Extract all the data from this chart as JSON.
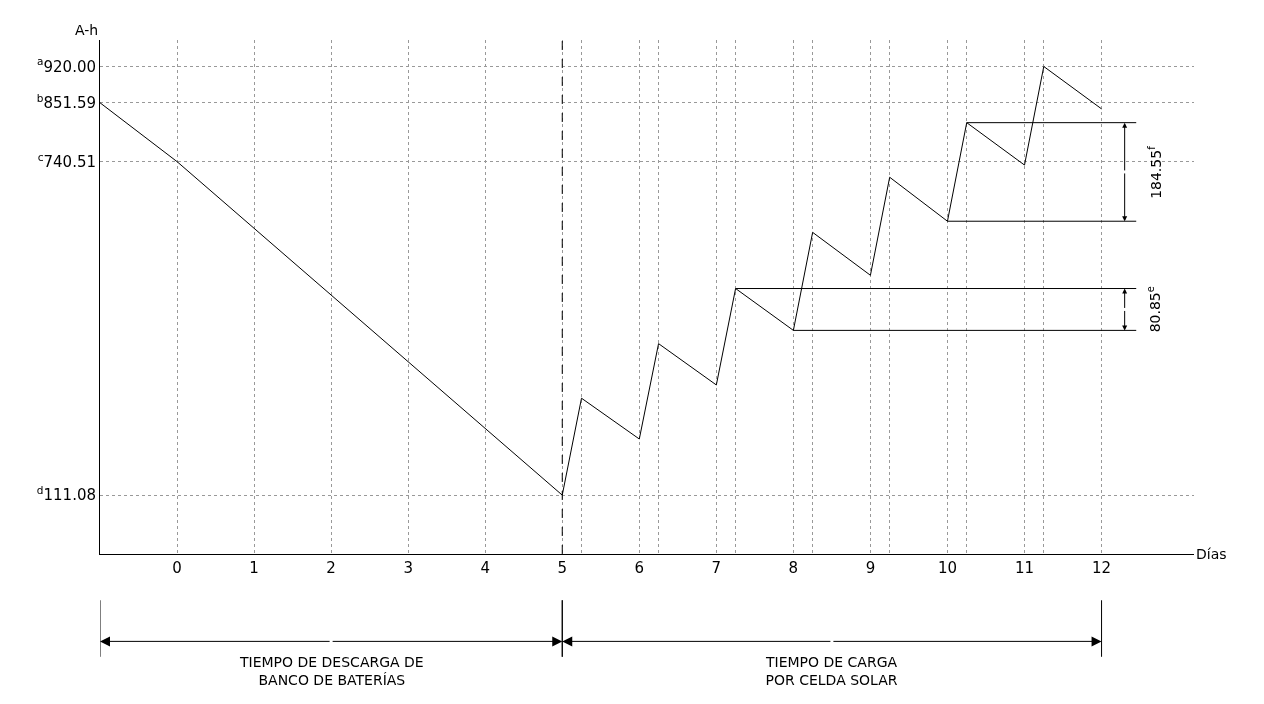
{
  "chart_data": {
    "type": "line",
    "xlabel": "Días",
    "ylabel": "A-h",
    "x": [
      -1,
      0,
      5,
      5.25,
      6,
      6.25,
      7,
      7.25,
      8,
      8.25,
      9,
      9.25,
      10,
      10.25,
      11,
      11.25,
      12
    ],
    "series": [
      {
        "color": "#000000",
        "values": [
          851.59,
          740.51,
          111.08,
          294,
          217,
          397,
          319,
          501,
          422,
          607,
          526,
          711,
          628,
          814,
          734,
          920,
          840
        ]
      }
    ],
    "xlim": [
      -1,
      13.2
    ],
    "ylim": [
      0,
      970
    ],
    "xticks": [
      0,
      1,
      2,
      3,
      4,
      5,
      6,
      7,
      8,
      9,
      10,
      11,
      12,
      {
        "value": 5.25,
        "label": null
      },
      {
        "value": 6.25,
        "label": null
      },
      {
        "value": 7.25,
        "label": null
      },
      {
        "value": 8.25,
        "label": null
      },
      {
        "value": 9.25,
        "label": null
      },
      {
        "value": 10.25,
        "label": null
      },
      {
        "value": 11.25,
        "label": null
      }
    ],
    "yticks": [
      {
        "value": 111.08,
        "label": "$^{d}$111.08"
      },
      {
        "value": 740.51,
        "label": "$^{c}$740.51"
      },
      {
        "value": 851.59,
        "label": "$^{b}$851.59"
      },
      {
        "value": 920,
        "label": "$^{a}$920.00"
      }
    ],
    "grid": true,
    "marker": "none",
    "line_style": "solid",
    "ref_lines": [
      {
        "axis": "x",
        "value": 5,
        "line_style": "dashed",
        "color": "#000000"
      },
      {
        "axis": "y",
        "value": 422,
        "color": "#000000"
      },
      {
        "axis": "y",
        "value": 501,
        "color": "#000000"
      },
      {
        "axis": "y",
        "value": 628,
        "color": "#000000"
      },
      {
        "axis": "y",
        "value": 814,
        "color": "#000000"
      }
    ],
    "annotations": [
      "80.85$^{e}$",
      "184.55$^{f}$",
      "TIEMPO DE DESCARGA DE\nBANCO DE BATERÍAS",
      "TIEMPO DE CARGA\nPOR CELDA SOLAR"
    ]
  }
}
